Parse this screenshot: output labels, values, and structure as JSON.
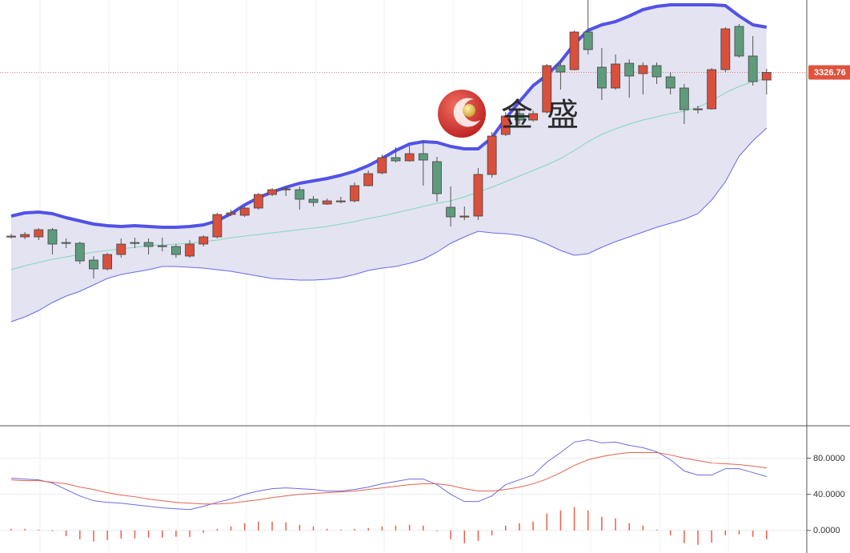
{
  "chart_data": [
    {
      "type": "candlestick",
      "open": [
        3224.5,
        3224,
        3224,
        3228.5,
        3220.5,
        3220,
        3209.5,
        3204,
        3213,
        3220.5,
        3220.5,
        3218.5,
        3218,
        3212,
        3219.5,
        3224,
        3238,
        3237.5,
        3242,
        3250.5,
        3253.5,
        3253.5,
        3247.5,
        3244.5,
        3246.5,
        3246.5,
        3256,
        3264,
        3273.5,
        3271.5,
        3276,
        3271,
        3242.5,
        3237,
        3237,
        3263,
        3288,
        3301,
        3297,
        3302,
        3331,
        3328.5,
        3352,
        3330,
        3317,
        3332.5,
        3326,
        3331,
        3324,
        3317,
        3304,
        3304,
        3328.5,
        3355.5,
        3337,
        3322
      ],
      "high": [
        3226,
        3227,
        3229.5,
        3229.5,
        3223,
        3221,
        3212,
        3214,
        3223,
        3223.5,
        3223,
        3223.5,
        3219.5,
        3222,
        3225,
        3239,
        3241,
        3243,
        3251.5,
        3254.5,
        3256,
        3255.5,
        3249.5,
        3248,
        3249,
        3258,
        3265.5,
        3275.5,
        3280,
        3281,
        3284,
        3274,
        3255.5,
        3243,
        3267,
        3289.5,
        3302,
        3304.5,
        3303,
        3332,
        3334.5,
        3353,
        3372,
        3342,
        3338,
        3335,
        3333,
        3333,
        3327,
        3319.5,
        3306,
        3329.5,
        3355,
        3357,
        3349.5,
        3329
      ],
      "low": [
        3223,
        3222.5,
        3222,
        3213,
        3217,
        3207,
        3198,
        3203,
        3211,
        3217,
        3213,
        3215,
        3211,
        3211,
        3218,
        3223,
        3237,
        3236.5,
        3241,
        3249.5,
        3249.5,
        3241,
        3243,
        3244,
        3245,
        3245.5,
        3255.5,
        3263,
        3270.5,
        3271,
        3256,
        3246,
        3230.5,
        3234.5,
        3234.5,
        3261,
        3287,
        3294.5,
        3296,
        3301,
        3316,
        3328,
        3338,
        3309.5,
        3316,
        3311,
        3313,
        3319.5,
        3313,
        3294.5,
        3301,
        3303.5,
        3327,
        3336,
        3318.5,
        3313
      ],
      "close": [
        3224.5,
        3225.5,
        3228.5,
        3219.5,
        3220,
        3209,
        3204,
        3213,
        3219.5,
        3220,
        3218,
        3218,
        3213,
        3219.5,
        3224,
        3238,
        3239,
        3242,
        3250.5,
        3253.5,
        3254,
        3247.5,
        3245.5,
        3246.5,
        3246.5,
        3256,
        3263.5,
        3273.5,
        3271.5,
        3276,
        3272,
        3251,
        3236.5,
        3237,
        3263,
        3287,
        3299.5,
        3297,
        3301,
        3331,
        3327,
        3352,
        3341,
        3317,
        3332,
        3324.5,
        3331,
        3324,
        3317,
        3303.5,
        3304,
        3328.5,
        3354,
        3337,
        3321,
        3326.76
      ],
      "up_color": "#d9503c",
      "down_color": "#5e9b7c",
      "bands": {
        "fill": "#e3e3f1",
        "upper": {
          "color": "#5252e6",
          "values": [
            3237,
            3239,
            3239.5,
            3238.5,
            3236,
            3234,
            3232,
            3231,
            3230.5,
            3231,
            3230.5,
            3230,
            3230,
            3230.5,
            3231.5,
            3234,
            3238.5,
            3244,
            3248.5,
            3252,
            3255,
            3257.5,
            3259,
            3260.5,
            3262.5,
            3265,
            3268.5,
            3273,
            3278,
            3282,
            3283.5,
            3283,
            3280.5,
            3279,
            3279,
            3286,
            3298,
            3308.5,
            3318.5,
            3325,
            3333.5,
            3344.5,
            3353,
            3356.5,
            3358.5,
            3362,
            3366,
            3368,
            3369,
            3369,
            3369,
            3369,
            3368.5,
            3362,
            3356.5,
            3355
          ]
        },
        "middle": {
          "color": "#86d8bb",
          "values": [
            3203.5,
            3206,
            3208,
            3210,
            3211.5,
            3213,
            3214.5,
            3215.5,
            3216.5,
            3217.5,
            3218.5,
            3219,
            3219.5,
            3220,
            3221,
            3222,
            3223.5,
            3224.5,
            3225.5,
            3226.5,
            3227.5,
            3228.5,
            3229.5,
            3230.5,
            3232,
            3233.5,
            3235.5,
            3237,
            3239,
            3241,
            3243,
            3245,
            3246.5,
            3249,
            3252,
            3255,
            3258.5,
            3262,
            3265.5,
            3269,
            3273,
            3278,
            3283.5,
            3288,
            3291.5,
            3294.5,
            3297,
            3299,
            3301,
            3302.5,
            3305,
            3309,
            3314,
            3318,
            3321,
            3323
          ]
        },
        "lower": {
          "color": "#6a6ae6",
          "values": [
            3171,
            3174,
            3178,
            3183,
            3187,
            3190,
            3194,
            3198,
            3200.5,
            3202,
            3203.5,
            3205.5,
            3205.5,
            3205,
            3204.5,
            3203.5,
            3202.5,
            3201,
            3199.5,
            3198,
            3197.5,
            3197,
            3197,
            3197.5,
            3198.5,
            3200.5,
            3203,
            3204.5,
            3205.5,
            3207.5,
            3210,
            3214.5,
            3220,
            3224,
            3227.5,
            3226.5,
            3226,
            3225,
            3223,
            3219.5,
            3215.5,
            3212.5,
            3213.5,
            3217.5,
            3221,
            3224,
            3227,
            3230,
            3232.5,
            3235,
            3238.5,
            3247,
            3258.5,
            3274.5,
            3284,
            3292
          ]
        }
      },
      "ylim": [
        3107,
        3372
      ],
      "price_line": {
        "value": 3326.76,
        "label": "3326.76",
        "color": "#e0533d"
      },
      "watermark": [
        "金",
        "盛"
      ]
    },
    {
      "type": "line",
      "series": [
        {
          "color": "#6b6be0",
          "values": [
            57.8,
            56.9,
            56.0,
            52.4,
            45.3,
            38.2,
            32.9,
            31.1,
            30.2,
            28.4,
            26.7,
            24.9,
            24.0,
            23.1,
            26.7,
            31.1,
            34.7,
            40.0,
            43.6,
            46.2,
            47.1,
            46.2,
            45.3,
            43.6,
            43.6,
            45.3,
            48.0,
            51.6,
            54.2,
            56.9,
            56.9,
            50.7,
            40.0,
            32.0,
            32.0,
            38.2,
            50.7,
            56.0,
            61.3,
            75.6,
            86.2,
            97.8,
            100.4,
            96.9,
            97.8,
            94.2,
            91.6,
            87.1,
            78.2,
            65.8,
            61.3,
            61.3,
            68.4,
            68.4,
            64.0,
            59.6
          ]
        },
        {
          "color": "#e5624e",
          "values": [
            56.0,
            55.1,
            55.1,
            53.3,
            51.6,
            48.0,
            45.3,
            41.8,
            39.1,
            37.3,
            34.7,
            32.9,
            31.1,
            30.2,
            29.3,
            29.3,
            30.2,
            32.0,
            33.8,
            36.4,
            38.2,
            40.0,
            40.9,
            41.8,
            42.7,
            43.6,
            45.3,
            47.1,
            48.9,
            50.7,
            51.6,
            51.6,
            49.8,
            46.2,
            43.6,
            43.6,
            45.3,
            48.0,
            51.6,
            56.9,
            64.0,
            72.0,
            78.2,
            81.8,
            84.4,
            86.2,
            86.2,
            86.2,
            83.6,
            80.0,
            77.3,
            74.7,
            73.8,
            72.9,
            71.1,
            69.3
          ]
        }
      ],
      "bars": {
        "color": "#e8604c",
        "values": [
          1.8,
          1.8,
          0.9,
          -0.9,
          -6.3,
          -9.8,
          -12.4,
          -10.7,
          -8.9,
          -8.9,
          -8.0,
          -8.0,
          -7.1,
          -7.1,
          -2.6,
          1.8,
          4.5,
          8.0,
          9.8,
          9.8,
          8.9,
          6.2,
          4.4,
          1.8,
          0.9,
          1.7,
          2.7,
          4.5,
          5.3,
          6.2,
          5.3,
          -0.9,
          -9.8,
          -14.2,
          -11.6,
          -5.4,
          5.4,
          8.0,
          9.7,
          18.7,
          22.2,
          25.8,
          22.2,
          15.1,
          13.4,
          8.0,
          5.4,
          0.9,
          -5.4,
          -14.2,
          -16.0,
          -13.4,
          -5.4,
          -4.5,
          -7.1,
          -9.7
        ]
      },
      "ylim": [
        -25,
        115
      ],
      "yticks": [
        {
          "value": 80,
          "label": "80.0000"
        },
        {
          "value": 40,
          "label": "40.0000"
        },
        {
          "value": 0,
          "label": "0.0000"
        }
      ],
      "grid": true
    }
  ]
}
